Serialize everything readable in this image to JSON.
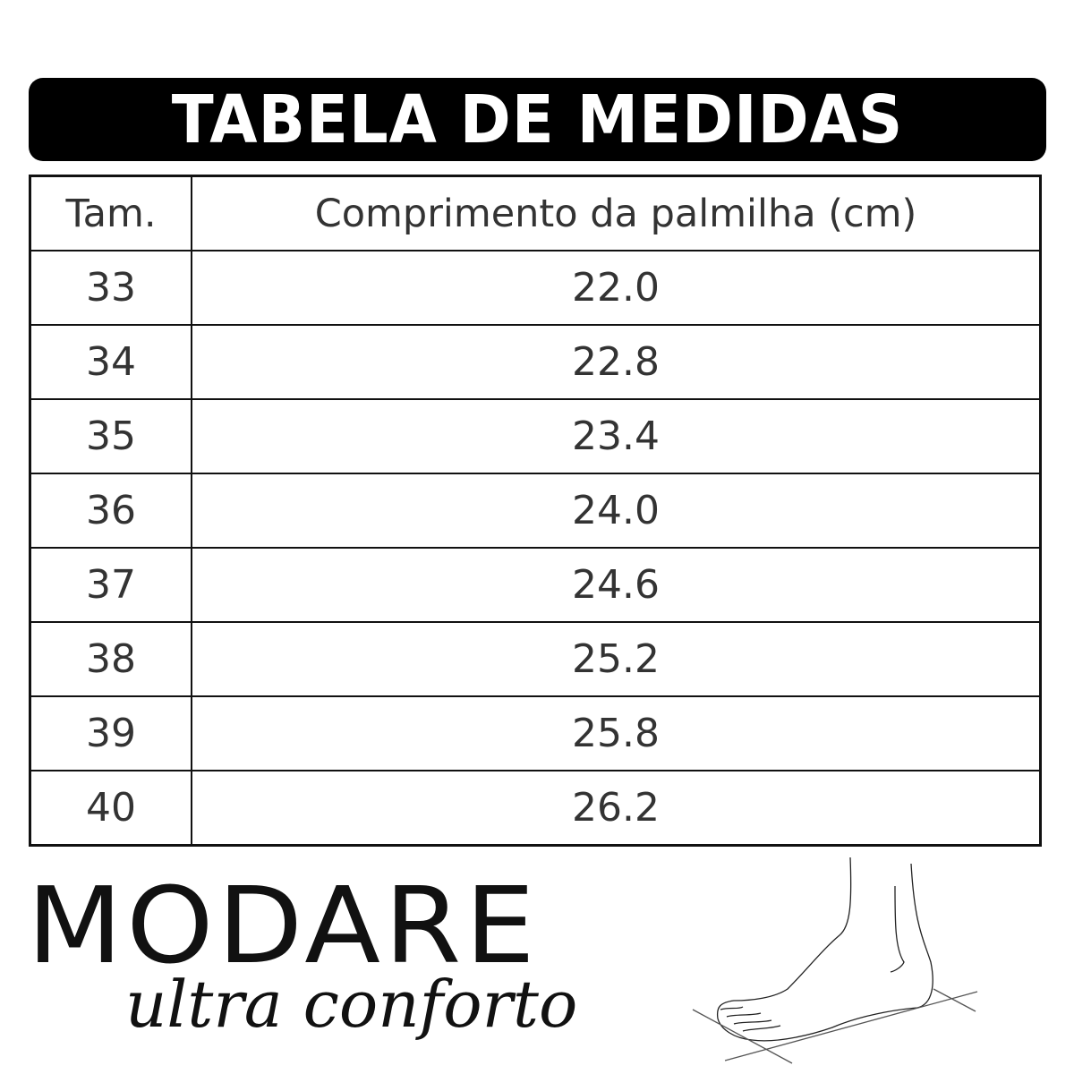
{
  "title": "TABELA DE MEDIDAS",
  "table": {
    "headers": [
      "Tam.",
      "Comprimento da palmilha (cm)"
    ],
    "rows": [
      [
        "33",
        "22.0"
      ],
      [
        "34",
        "22.8"
      ],
      [
        "35",
        "23.4"
      ],
      [
        "36",
        "24.0"
      ],
      [
        "37",
        "24.6"
      ],
      [
        "38",
        "25.2"
      ],
      [
        "39",
        "25.8"
      ],
      [
        "40",
        "26.2"
      ]
    ]
  },
  "logo": {
    "brand": "MODARE",
    "tagline": "ultra conforto"
  },
  "illustration": "foot-measurement-icon"
}
